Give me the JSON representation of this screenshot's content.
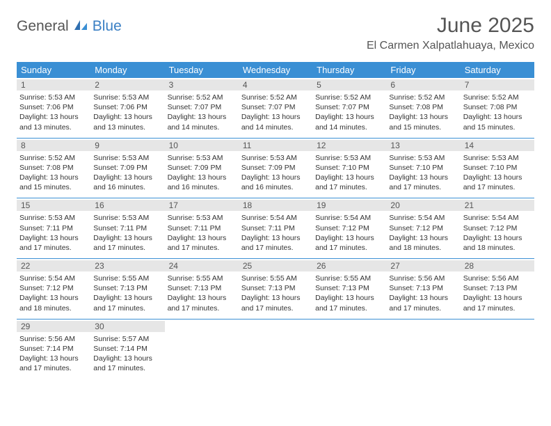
{
  "header": {
    "logo_part1": "General",
    "logo_part2": "Blue",
    "month_title": "June 2025",
    "location": "El Carmen Xalpatlahuaya, Mexico"
  },
  "colors": {
    "accent": "#3a8fd4",
    "logo_blue": "#3a7fc4",
    "text_gray": "#555555",
    "band_gray": "#e6e6e6",
    "body_text": "#333333",
    "background": "#ffffff"
  },
  "calendar": {
    "day_names": [
      "Sunday",
      "Monday",
      "Tuesday",
      "Wednesday",
      "Thursday",
      "Friday",
      "Saturday"
    ],
    "cell_font_size_pt": 8,
    "header_font_size_pt": 10,
    "weeks": [
      [
        {
          "day": "1",
          "sunrise": "Sunrise: 5:53 AM",
          "sunset": "Sunset: 7:06 PM",
          "daylight1": "Daylight: 13 hours",
          "daylight2": "and 13 minutes."
        },
        {
          "day": "2",
          "sunrise": "Sunrise: 5:53 AM",
          "sunset": "Sunset: 7:06 PM",
          "daylight1": "Daylight: 13 hours",
          "daylight2": "and 13 minutes."
        },
        {
          "day": "3",
          "sunrise": "Sunrise: 5:52 AM",
          "sunset": "Sunset: 7:07 PM",
          "daylight1": "Daylight: 13 hours",
          "daylight2": "and 14 minutes."
        },
        {
          "day": "4",
          "sunrise": "Sunrise: 5:52 AM",
          "sunset": "Sunset: 7:07 PM",
          "daylight1": "Daylight: 13 hours",
          "daylight2": "and 14 minutes."
        },
        {
          "day": "5",
          "sunrise": "Sunrise: 5:52 AM",
          "sunset": "Sunset: 7:07 PM",
          "daylight1": "Daylight: 13 hours",
          "daylight2": "and 14 minutes."
        },
        {
          "day": "6",
          "sunrise": "Sunrise: 5:52 AM",
          "sunset": "Sunset: 7:08 PM",
          "daylight1": "Daylight: 13 hours",
          "daylight2": "and 15 minutes."
        },
        {
          "day": "7",
          "sunrise": "Sunrise: 5:52 AM",
          "sunset": "Sunset: 7:08 PM",
          "daylight1": "Daylight: 13 hours",
          "daylight2": "and 15 minutes."
        }
      ],
      [
        {
          "day": "8",
          "sunrise": "Sunrise: 5:52 AM",
          "sunset": "Sunset: 7:08 PM",
          "daylight1": "Daylight: 13 hours",
          "daylight2": "and 15 minutes."
        },
        {
          "day": "9",
          "sunrise": "Sunrise: 5:53 AM",
          "sunset": "Sunset: 7:09 PM",
          "daylight1": "Daylight: 13 hours",
          "daylight2": "and 16 minutes."
        },
        {
          "day": "10",
          "sunrise": "Sunrise: 5:53 AM",
          "sunset": "Sunset: 7:09 PM",
          "daylight1": "Daylight: 13 hours",
          "daylight2": "and 16 minutes."
        },
        {
          "day": "11",
          "sunrise": "Sunrise: 5:53 AM",
          "sunset": "Sunset: 7:09 PM",
          "daylight1": "Daylight: 13 hours",
          "daylight2": "and 16 minutes."
        },
        {
          "day": "12",
          "sunrise": "Sunrise: 5:53 AM",
          "sunset": "Sunset: 7:10 PM",
          "daylight1": "Daylight: 13 hours",
          "daylight2": "and 17 minutes."
        },
        {
          "day": "13",
          "sunrise": "Sunrise: 5:53 AM",
          "sunset": "Sunset: 7:10 PM",
          "daylight1": "Daylight: 13 hours",
          "daylight2": "and 17 minutes."
        },
        {
          "day": "14",
          "sunrise": "Sunrise: 5:53 AM",
          "sunset": "Sunset: 7:10 PM",
          "daylight1": "Daylight: 13 hours",
          "daylight2": "and 17 minutes."
        }
      ],
      [
        {
          "day": "15",
          "sunrise": "Sunrise: 5:53 AM",
          "sunset": "Sunset: 7:11 PM",
          "daylight1": "Daylight: 13 hours",
          "daylight2": "and 17 minutes."
        },
        {
          "day": "16",
          "sunrise": "Sunrise: 5:53 AM",
          "sunset": "Sunset: 7:11 PM",
          "daylight1": "Daylight: 13 hours",
          "daylight2": "and 17 minutes."
        },
        {
          "day": "17",
          "sunrise": "Sunrise: 5:53 AM",
          "sunset": "Sunset: 7:11 PM",
          "daylight1": "Daylight: 13 hours",
          "daylight2": "and 17 minutes."
        },
        {
          "day": "18",
          "sunrise": "Sunrise: 5:54 AM",
          "sunset": "Sunset: 7:11 PM",
          "daylight1": "Daylight: 13 hours",
          "daylight2": "and 17 minutes."
        },
        {
          "day": "19",
          "sunrise": "Sunrise: 5:54 AM",
          "sunset": "Sunset: 7:12 PM",
          "daylight1": "Daylight: 13 hours",
          "daylight2": "and 17 minutes."
        },
        {
          "day": "20",
          "sunrise": "Sunrise: 5:54 AM",
          "sunset": "Sunset: 7:12 PM",
          "daylight1": "Daylight: 13 hours",
          "daylight2": "and 18 minutes."
        },
        {
          "day": "21",
          "sunrise": "Sunrise: 5:54 AM",
          "sunset": "Sunset: 7:12 PM",
          "daylight1": "Daylight: 13 hours",
          "daylight2": "and 18 minutes."
        }
      ],
      [
        {
          "day": "22",
          "sunrise": "Sunrise: 5:54 AM",
          "sunset": "Sunset: 7:12 PM",
          "daylight1": "Daylight: 13 hours",
          "daylight2": "and 18 minutes."
        },
        {
          "day": "23",
          "sunrise": "Sunrise: 5:55 AM",
          "sunset": "Sunset: 7:13 PM",
          "daylight1": "Daylight: 13 hours",
          "daylight2": "and 17 minutes."
        },
        {
          "day": "24",
          "sunrise": "Sunrise: 5:55 AM",
          "sunset": "Sunset: 7:13 PM",
          "daylight1": "Daylight: 13 hours",
          "daylight2": "and 17 minutes."
        },
        {
          "day": "25",
          "sunrise": "Sunrise: 5:55 AM",
          "sunset": "Sunset: 7:13 PM",
          "daylight1": "Daylight: 13 hours",
          "daylight2": "and 17 minutes."
        },
        {
          "day": "26",
          "sunrise": "Sunrise: 5:55 AM",
          "sunset": "Sunset: 7:13 PM",
          "daylight1": "Daylight: 13 hours",
          "daylight2": "and 17 minutes."
        },
        {
          "day": "27",
          "sunrise": "Sunrise: 5:56 AM",
          "sunset": "Sunset: 7:13 PM",
          "daylight1": "Daylight: 13 hours",
          "daylight2": "and 17 minutes."
        },
        {
          "day": "28",
          "sunrise": "Sunrise: 5:56 AM",
          "sunset": "Sunset: 7:13 PM",
          "daylight1": "Daylight: 13 hours",
          "daylight2": "and 17 minutes."
        }
      ],
      [
        {
          "day": "29",
          "sunrise": "Sunrise: 5:56 AM",
          "sunset": "Sunset: 7:14 PM",
          "daylight1": "Daylight: 13 hours",
          "daylight2": "and 17 minutes."
        },
        {
          "day": "30",
          "sunrise": "Sunrise: 5:57 AM",
          "sunset": "Sunset: 7:14 PM",
          "daylight1": "Daylight: 13 hours",
          "daylight2": "and 17 minutes."
        },
        null,
        null,
        null,
        null,
        null
      ]
    ]
  }
}
